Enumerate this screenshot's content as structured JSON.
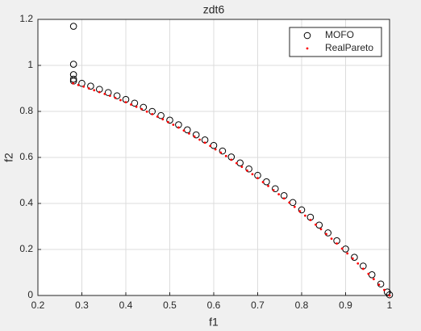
{
  "chart_data": {
    "type": "scatter",
    "title": "zdt6",
    "x_label": "f1",
    "y_label": "f2",
    "xlim": [
      0.2,
      1
    ],
    "xticks": [
      0.2,
      0.3,
      0.4,
      0.5,
      0.6,
      0.7,
      0.8,
      0.9,
      1
    ],
    "ylim": [
      0,
      1.2
    ],
    "yticks": [
      0,
      0.2,
      0.4,
      0.6,
      0.8,
      1,
      1.2
    ],
    "grid": true,
    "legend": "top-right",
    "series": [
      {
        "name": "MOFO",
        "color": "#000000",
        "marker": "circle",
        "x": [
          0.281,
          0.281,
          0.281,
          0.281,
          0.281,
          0.3,
          0.32,
          0.34,
          0.36,
          0.38,
          0.4,
          0.42,
          0.44,
          0.46,
          0.48,
          0.5,
          0.52,
          0.54,
          0.56,
          0.58,
          0.6,
          0.62,
          0.64,
          0.66,
          0.68,
          0.7,
          0.72,
          0.74,
          0.76,
          0.78,
          0.8,
          0.82,
          0.84,
          0.86,
          0.88,
          0.9,
          0.92,
          0.94,
          0.96,
          0.98,
          0.995,
          1.0
        ],
        "y": [
          1.17,
          1.005,
          0.96,
          0.94,
          0.932,
          0.922,
          0.91,
          0.896,
          0.882,
          0.868,
          0.852,
          0.836,
          0.818,
          0.8,
          0.782,
          0.762,
          0.742,
          0.72,
          0.698,
          0.676,
          0.652,
          0.628,
          0.602,
          0.576,
          0.55,
          0.522,
          0.494,
          0.464,
          0.434,
          0.404,
          0.372,
          0.34,
          0.306,
          0.272,
          0.238,
          0.202,
          0.166,
          0.128,
          0.09,
          0.05,
          0.015,
          0.003
        ]
      },
      {
        "name": "RealPareto",
        "color": "#ff0000",
        "marker": "dot",
        "x": [
          0.28,
          0.292,
          0.304,
          0.316,
          0.328,
          0.34,
          0.352,
          0.364,
          0.376,
          0.388,
          0.4,
          0.412,
          0.424,
          0.436,
          0.448,
          0.46,
          0.472,
          0.484,
          0.496,
          0.508,
          0.52,
          0.532,
          0.544,
          0.556,
          0.568,
          0.58,
          0.592,
          0.604,
          0.616,
          0.628,
          0.64,
          0.652,
          0.664,
          0.676,
          0.688,
          0.7,
          0.712,
          0.724,
          0.736,
          0.748,
          0.76,
          0.772,
          0.784,
          0.796,
          0.808,
          0.82,
          0.832,
          0.844,
          0.856,
          0.868,
          0.88,
          0.892,
          0.904,
          0.916,
          0.928,
          0.94,
          0.952,
          0.964,
          0.976,
          0.988,
          1.0
        ],
        "y": [
          0.922,
          0.915,
          0.908,
          0.9,
          0.892,
          0.884,
          0.876,
          0.868,
          0.859,
          0.849,
          0.84,
          0.83,
          0.82,
          0.81,
          0.799,
          0.788,
          0.777,
          0.766,
          0.754,
          0.742,
          0.73,
          0.717,
          0.704,
          0.691,
          0.677,
          0.664,
          0.65,
          0.635,
          0.621,
          0.606,
          0.59,
          0.575,
          0.559,
          0.543,
          0.527,
          0.51,
          0.493,
          0.476,
          0.458,
          0.44,
          0.422,
          0.404,
          0.385,
          0.366,
          0.347,
          0.328,
          0.308,
          0.288,
          0.267,
          0.247,
          0.226,
          0.204,
          0.183,
          0.161,
          0.139,
          0.116,
          0.094,
          0.071,
          0.047,
          0.024,
          0
        ]
      }
    ]
  }
}
